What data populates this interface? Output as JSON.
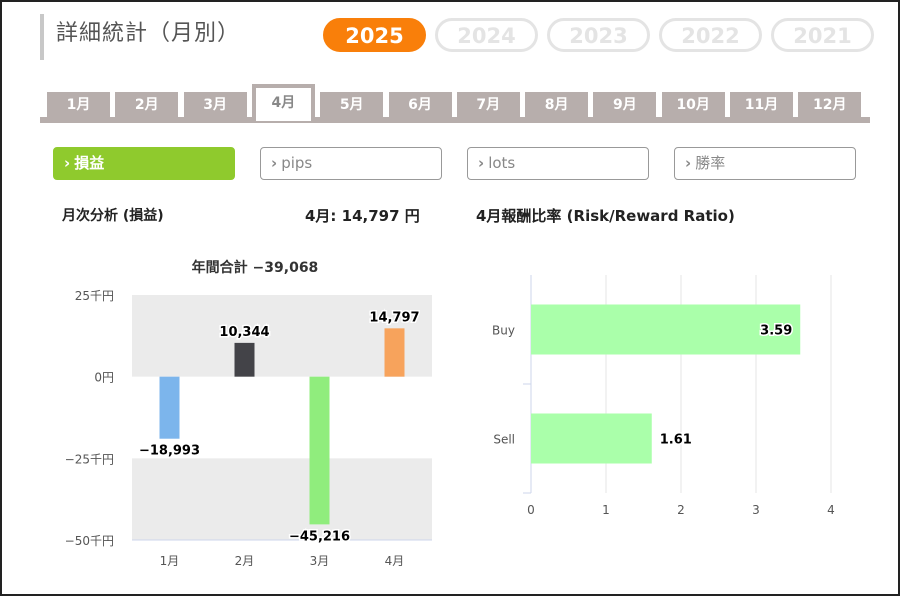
{
  "page_title": "詳細統計（月別）",
  "years": [
    {
      "label": "2025",
      "active": true
    },
    {
      "label": "2024",
      "active": false
    },
    {
      "label": "2023",
      "active": false
    },
    {
      "label": "2022",
      "active": false
    },
    {
      "label": "2021",
      "active": false
    }
  ],
  "months": [
    {
      "label": "1月",
      "active": false
    },
    {
      "label": "2月",
      "active": false
    },
    {
      "label": "3月",
      "active": false
    },
    {
      "label": "4月",
      "active": true
    },
    {
      "label": "5月",
      "active": false
    },
    {
      "label": "6月",
      "active": false
    },
    {
      "label": "7月",
      "active": false
    },
    {
      "label": "8月",
      "active": false
    },
    {
      "label": "9月",
      "active": false
    },
    {
      "label": "10月",
      "active": false
    },
    {
      "label": "11月",
      "active": false
    },
    {
      "label": "12月",
      "active": false
    }
  ],
  "metrics": [
    {
      "label": "損益",
      "active": true
    },
    {
      "label": "pips",
      "active": false
    },
    {
      "label": "lots",
      "active": false
    },
    {
      "label": "勝率",
      "active": false
    }
  ],
  "chevron_icon": "›",
  "left_section": {
    "heading": "月次分析 (損益)",
    "month_summary": "4月:  14,797 円"
  },
  "right_section": {
    "heading": "4月報酬比率 (Risk/Reward Ratio)"
  },
  "chart_data": [
    {
      "type": "bar",
      "title": "年間合計 −39,068",
      "categories": [
        "1月",
        "2月",
        "3月",
        "4月"
      ],
      "values": [
        -18993,
        10344,
        -45216,
        14797
      ],
      "data_labels": [
        "−18,993",
        "10,344",
        "−45,216",
        "14,797"
      ],
      "colors": [
        "#7cb5ec",
        "#434348",
        "#90ed7d",
        "#f7a35c"
      ],
      "ylim": [
        -50000,
        25000
      ],
      "yticks": [
        25000,
        0,
        -25000,
        -50000
      ],
      "ytick_labels": [
        "25千円",
        "0円",
        "−25千円",
        "−50千円"
      ],
      "band_color": "#ebebeb",
      "grid": false
    },
    {
      "type": "bar",
      "orientation": "horizontal",
      "categories": [
        "Buy",
        "Sell"
      ],
      "values": [
        3.59,
        1.61
      ],
      "data_labels": [
        "3.59",
        "1.61"
      ],
      "bar_color": "#aaffaa",
      "xlim": [
        0,
        4
      ],
      "xticks": [
        0,
        1,
        2,
        3,
        4
      ],
      "xtick_labels": [
        "0",
        "1",
        "2",
        "3",
        "4"
      ],
      "grid": true
    }
  ]
}
